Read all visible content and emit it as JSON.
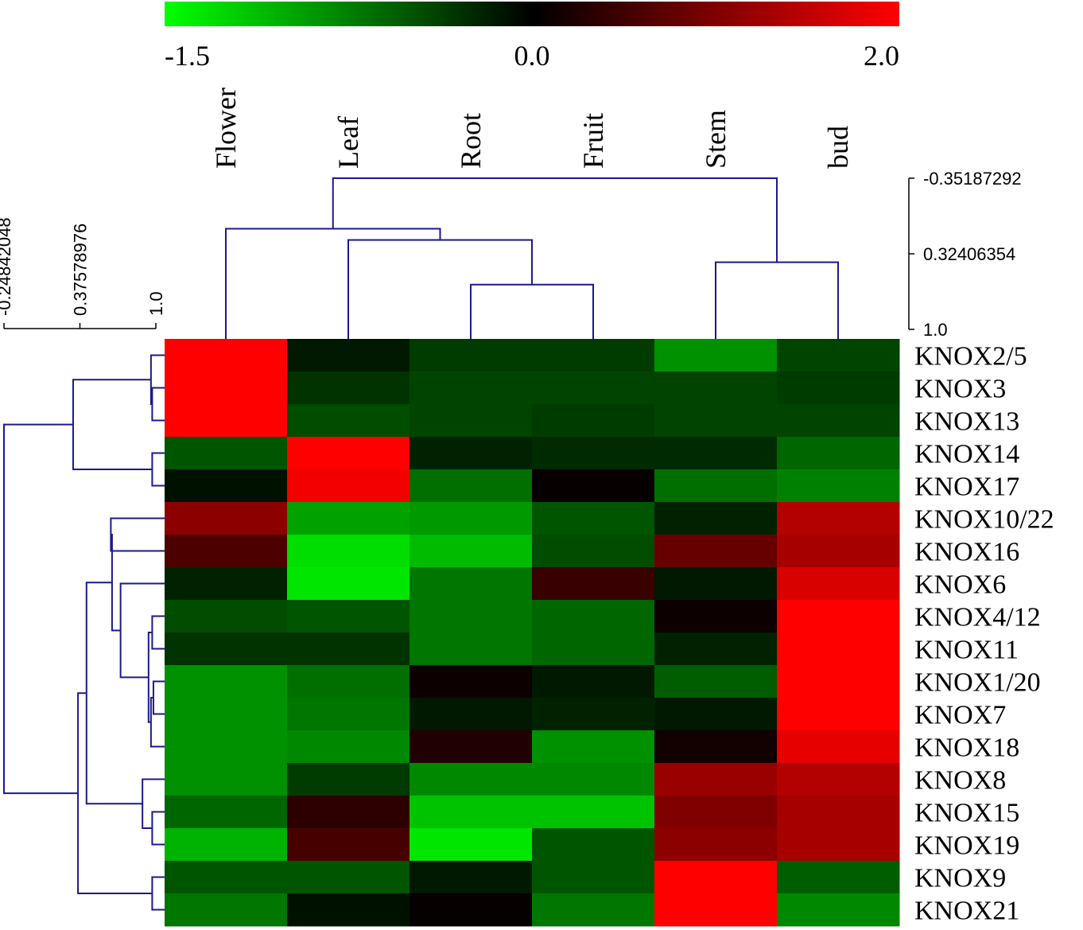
{
  "chart_data": {
    "type": "heatmap",
    "title": "",
    "xlabel": "",
    "ylabel": "",
    "colorbar": {
      "min": -1.5,
      "mid": 0.0,
      "max": 2.0,
      "tick_labels": [
        "-1.5",
        "0.0",
        "2.0"
      ],
      "low_color": "#00ff00",
      "mid_color": "#000000",
      "high_color": "#ff0000"
    },
    "columns": [
      "Flower",
      "Leaf",
      "Root",
      "Fruit",
      "Stem",
      "bud"
    ],
    "rows": [
      "KNOX2/5",
      "KNOX3",
      "KNOX13",
      "KNOX14",
      "KNOX17",
      "KNOX10/22",
      "KNOX16",
      "KNOX6",
      "KNOX4/12",
      "KNOX11",
      "KNOX1/20",
      "KNOX7",
      "KNOX18",
      "KNOX8",
      "KNOX15",
      "KNOX19",
      "KNOX9",
      "KNOX21"
    ],
    "values": [
      [
        2.0,
        -0.15,
        -0.35,
        -0.35,
        -0.85,
        -0.4
      ],
      [
        2.0,
        -0.3,
        -0.4,
        -0.4,
        -0.4,
        -0.35
      ],
      [
        2.0,
        -0.45,
        -0.4,
        -0.35,
        -0.4,
        -0.4
      ],
      [
        -0.5,
        2.0,
        -0.2,
        -0.25,
        -0.25,
        -0.6
      ],
      [
        -0.1,
        1.9,
        -0.65,
        0.05,
        -0.65,
        -0.75
      ],
      [
        1.1,
        -0.95,
        -0.9,
        -0.5,
        -0.2,
        1.4
      ],
      [
        0.6,
        -1.3,
        -1.1,
        -0.45,
        0.8,
        1.3
      ],
      [
        -0.2,
        -1.35,
        -0.7,
        0.45,
        -0.15,
        1.7
      ],
      [
        -0.45,
        -0.5,
        -0.7,
        -0.6,
        0.1,
        2.0
      ],
      [
        -0.3,
        -0.3,
        -0.7,
        -0.6,
        -0.2,
        2.0
      ],
      [
        -0.85,
        -0.65,
        0.1,
        -0.15,
        -0.55,
        2.0
      ],
      [
        -0.85,
        -0.7,
        -0.15,
        -0.2,
        -0.15,
        2.0
      ],
      [
        -0.85,
        -0.8,
        0.25,
        -0.85,
        0.15,
        1.8
      ],
      [
        -0.85,
        -0.35,
        -0.8,
        -0.8,
        1.2,
        1.4
      ],
      [
        -0.6,
        0.35,
        -1.15,
        -1.15,
        1.0,
        1.3
      ],
      [
        -1.05,
        0.55,
        -1.35,
        -0.5,
        1.1,
        1.3
      ],
      [
        -0.5,
        -0.5,
        -0.15,
        -0.5,
        2.0,
        -0.55
      ],
      [
        -0.7,
        -0.1,
        0.05,
        -0.7,
        2.0,
        -0.8
      ]
    ],
    "column_dendrogram": {
      "color": "#1a1a8c",
      "scale_labels": [
        "-0.35187292",
        "0.32406354",
        "1.0"
      ],
      "scale_values": [
        -0.35187292,
        0.32406354,
        1.0
      ],
      "merges": [
        {
          "a": {
            "leaf": 3
          },
          "b": {
            "leaf": 4
          },
          "h": 0.6
        },
        {
          "a": {
            "leaf": 5
          },
          "b": {
            "leaf": 6
          },
          "h": 0.4
        },
        {
          "a": {
            "leaf": 2
          },
          "b": {
            "node": 0
          },
          "h": 0.2
        },
        {
          "a": {
            "leaf": 1
          },
          "b": {
            "node": 2
          },
          "h": 0.1
        },
        {
          "a": {
            "node": 3
          },
          "b": {
            "node": 1
          },
          "h": -0.35187292
        }
      ]
    },
    "row_dendrogram": {
      "color": "#1a1a8c",
      "scale_labels": [
        "-0.24842048",
        "0.37578976",
        "1.0"
      ],
      "scale_values": [
        -0.24842048,
        0.37578976,
        1.0
      ],
      "merges": [
        {
          "a": {
            "leaf": 2
          },
          "b": {
            "leaf": 3
          },
          "h": 0.97
        },
        {
          "a": {
            "leaf": 1
          },
          "b": {
            "node": 0
          },
          "h": 0.96
        },
        {
          "a": {
            "leaf": 4
          },
          "b": {
            "leaf": 5
          },
          "h": 0.97
        },
        {
          "a": {
            "node": 1
          },
          "b": {
            "node": 2
          },
          "h": 0.32
        },
        {
          "a": {
            "leaf": 6
          },
          "b": {
            "leaf": 7
          },
          "h": 0.63
        },
        {
          "a": {
            "leaf": 9
          },
          "b": {
            "leaf": 10
          },
          "h": 0.97
        },
        {
          "a": {
            "leaf": 11
          },
          "b": {
            "leaf": 12
          },
          "h": 0.98
        },
        {
          "a": {
            "node": 6
          },
          "b": {
            "leaf": 13
          },
          "h": 0.96
        },
        {
          "a": {
            "node": 5
          },
          "b": {
            "node": 7
          },
          "h": 0.94
        },
        {
          "a": {
            "leaf": 8
          },
          "b": {
            "node": 8
          },
          "h": 0.71
        },
        {
          "a": {
            "node": 4
          },
          "b": {
            "node": 9
          },
          "h": 0.64
        },
        {
          "a": {
            "leaf": 15
          },
          "b": {
            "leaf": 16
          },
          "h": 0.97
        },
        {
          "a": {
            "leaf": 14
          },
          "b": {
            "node": 11
          },
          "h": 0.89
        },
        {
          "a": {
            "node": 10
          },
          "b": {
            "node": 12
          },
          "h": 0.43
        },
        {
          "a": {
            "leaf": 17
          },
          "b": {
            "leaf": 18
          },
          "h": 0.97
        },
        {
          "a": {
            "node": 13
          },
          "b": {
            "node": 14
          },
          "h": 0.36
        },
        {
          "a": {
            "node": 3
          },
          "b": {
            "node": 15
          },
          "h": -0.24842048
        }
      ]
    }
  }
}
